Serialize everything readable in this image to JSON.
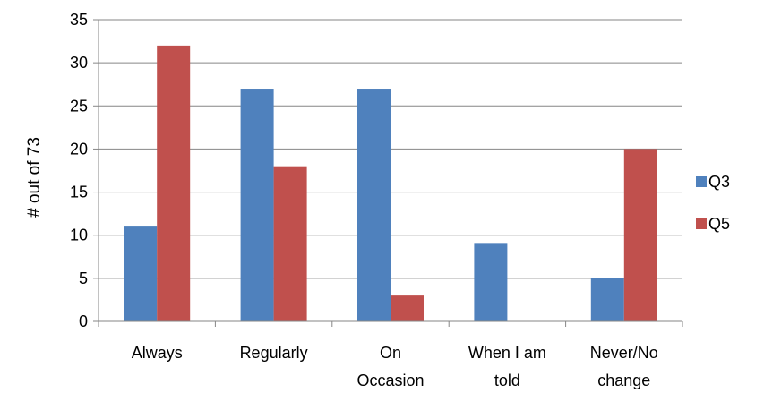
{
  "chart_data": {
    "type": "bar",
    "title": "",
    "xlabel": "",
    "ylabel": "# out of 73",
    "ylim": [
      0,
      35
    ],
    "ytick_step": 5,
    "grid": true,
    "legend_position": "right",
    "categories": [
      [
        "Always"
      ],
      [
        "Regularly"
      ],
      [
        "On",
        "Occasion"
      ],
      [
        "When I am",
        "told"
      ],
      [
        "Never/No",
        "change"
      ]
    ],
    "series": [
      {
        "name": "Q3",
        "color": "#4F81BD",
        "values": [
          11,
          27,
          27,
          9,
          5
        ]
      },
      {
        "name": "Q5",
        "color": "#C0504D",
        "values": [
          32,
          18,
          3,
          0,
          20
        ]
      }
    ]
  }
}
